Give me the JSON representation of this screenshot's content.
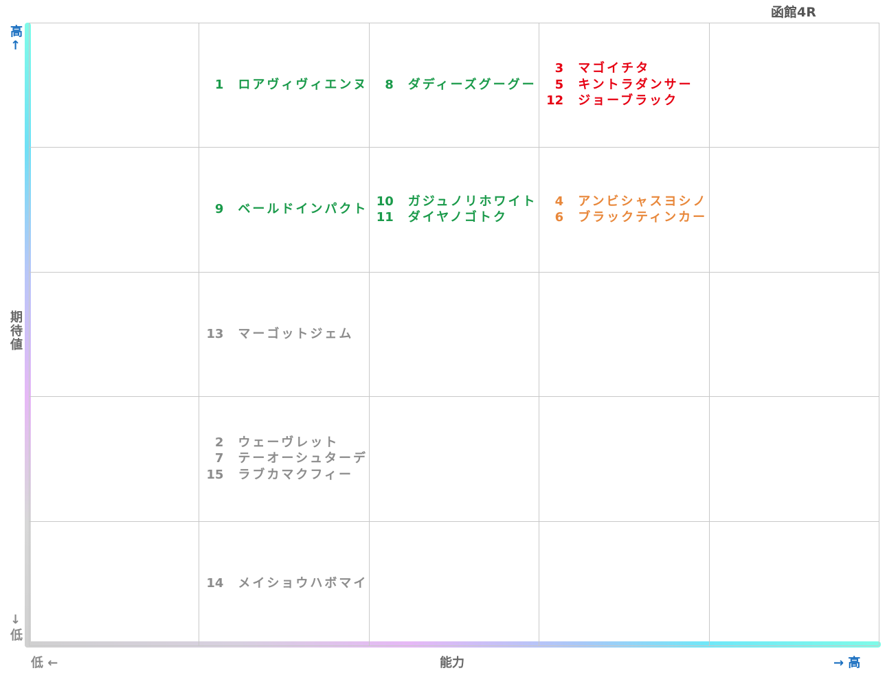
{
  "header": {
    "title": "函館4R"
  },
  "y_axis": {
    "high": "高↑",
    "label": "期待値",
    "low": "↓低"
  },
  "x_axis": {
    "low": "低 ←",
    "label": "能力",
    "high": "→ 高"
  },
  "grid": [
    [
      null,
      {
        "color": "#1a9a4a",
        "entries": [
          {
            "number": "1",
            "name": "ロアヴィヴィエンヌ"
          }
        ]
      },
      {
        "color": "#1a9a4a",
        "entries": [
          {
            "number": "8",
            "name": "ダディーズグーグー"
          }
        ]
      },
      {
        "color": "#e60012",
        "entries": [
          {
            "number": "3",
            "name": "マゴイチタ"
          },
          {
            "number": "5",
            "name": "キントラダンサー"
          },
          {
            "number": "12",
            "name": "ジョーブラック"
          }
        ]
      },
      null
    ],
    [
      null,
      {
        "color": "#1a9a4a",
        "entries": [
          {
            "number": "9",
            "name": "ベールドインパクト"
          }
        ]
      },
      {
        "color": "#1a9a4a",
        "entries": [
          {
            "number": "10",
            "name": "ガジュノリホワイト"
          },
          {
            "number": "11",
            "name": "ダイヤノゴトク"
          }
        ]
      },
      {
        "color": "#e8873a",
        "entries": [
          {
            "number": "4",
            "name": "アンビシャスヨシノ"
          },
          {
            "number": "6",
            "name": "ブラックティンカー"
          }
        ]
      },
      null
    ],
    [
      null,
      {
        "color": "#8c8c8c",
        "entries": [
          {
            "number": "13",
            "name": "マーゴットジェム"
          }
        ]
      },
      null,
      null,
      null
    ],
    [
      null,
      {
        "color": "#8c8c8c",
        "entries": [
          {
            "number": "2",
            "name": "ウェーヴレット"
          },
          {
            "number": "7",
            "name": "テーオーシュターデ"
          },
          {
            "number": "15",
            "name": "ラブカマクフィー"
          }
        ]
      },
      null,
      null,
      null
    ],
    [
      null,
      {
        "color": "#8c8c8c",
        "entries": [
          {
            "number": "14",
            "name": "メイショウハボマイ"
          }
        ]
      },
      null,
      null,
      null
    ]
  ]
}
